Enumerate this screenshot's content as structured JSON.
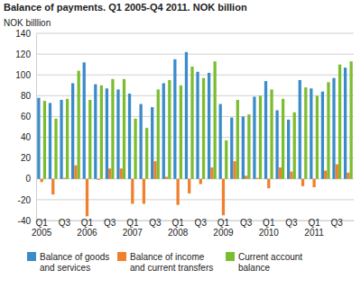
{
  "chart_data": {
    "type": "bar",
    "title": "Balance of payments. Q1 2005-Q4 2011. NOK billion",
    "y_label": "NOK billlion",
    "categories": [
      "Q1\n2005",
      null,
      "Q3",
      null,
      "Q1\n2006",
      null,
      "Q3",
      null,
      "Q1\n2007",
      null,
      "Q3",
      null,
      "Q1\n2008",
      null,
      "Q3",
      null,
      "Q1\n2009",
      null,
      "Q3",
      null,
      "Q1\n2010",
      null,
      "Q3",
      null,
      "Q1\n2011",
      null,
      "Q3",
      null
    ],
    "series": [
      {
        "name": "Balance of goods\nand services",
        "color": "#3a8bc9",
        "values": [
          78,
          73,
          76,
          92,
          112,
          91,
          87,
          86,
          82,
          72,
          69,
          92,
          115,
          122,
          103,
          102,
          72,
          59,
          60,
          79,
          94,
          66,
          57,
          95,
          87,
          84,
          97,
          107
        ]
      },
      {
        "name": "Balance of income\nand current transfers",
        "color": "#f0802d",
        "values": [
          -3,
          -15,
          1,
          13,
          -36,
          -1,
          10,
          10,
          -24,
          -24,
          17,
          2,
          -25,
          -14,
          -5,
          11,
          -35,
          17,
          3,
          1,
          -9,
          11,
          7,
          -7,
          -8,
          8,
          14,
          6
        ]
      },
      {
        "name": "Current account\nbalance",
        "color": "#7cbd30",
        "values": [
          75,
          58,
          77,
          104,
          76,
          90,
          96,
          96,
          58,
          49,
          86,
          95,
          90,
          108,
          97,
          113,
          37,
          76,
          62,
          80,
          86,
          77,
          64,
          88,
          80,
          93,
          110,
          113
        ]
      }
    ],
    "ylim": [
      -40,
      140
    ],
    "yticks": [
      -40,
      -20,
      0,
      20,
      40,
      60,
      80,
      100,
      120,
      140
    ],
    "grid": true,
    "legend": "bottom"
  }
}
